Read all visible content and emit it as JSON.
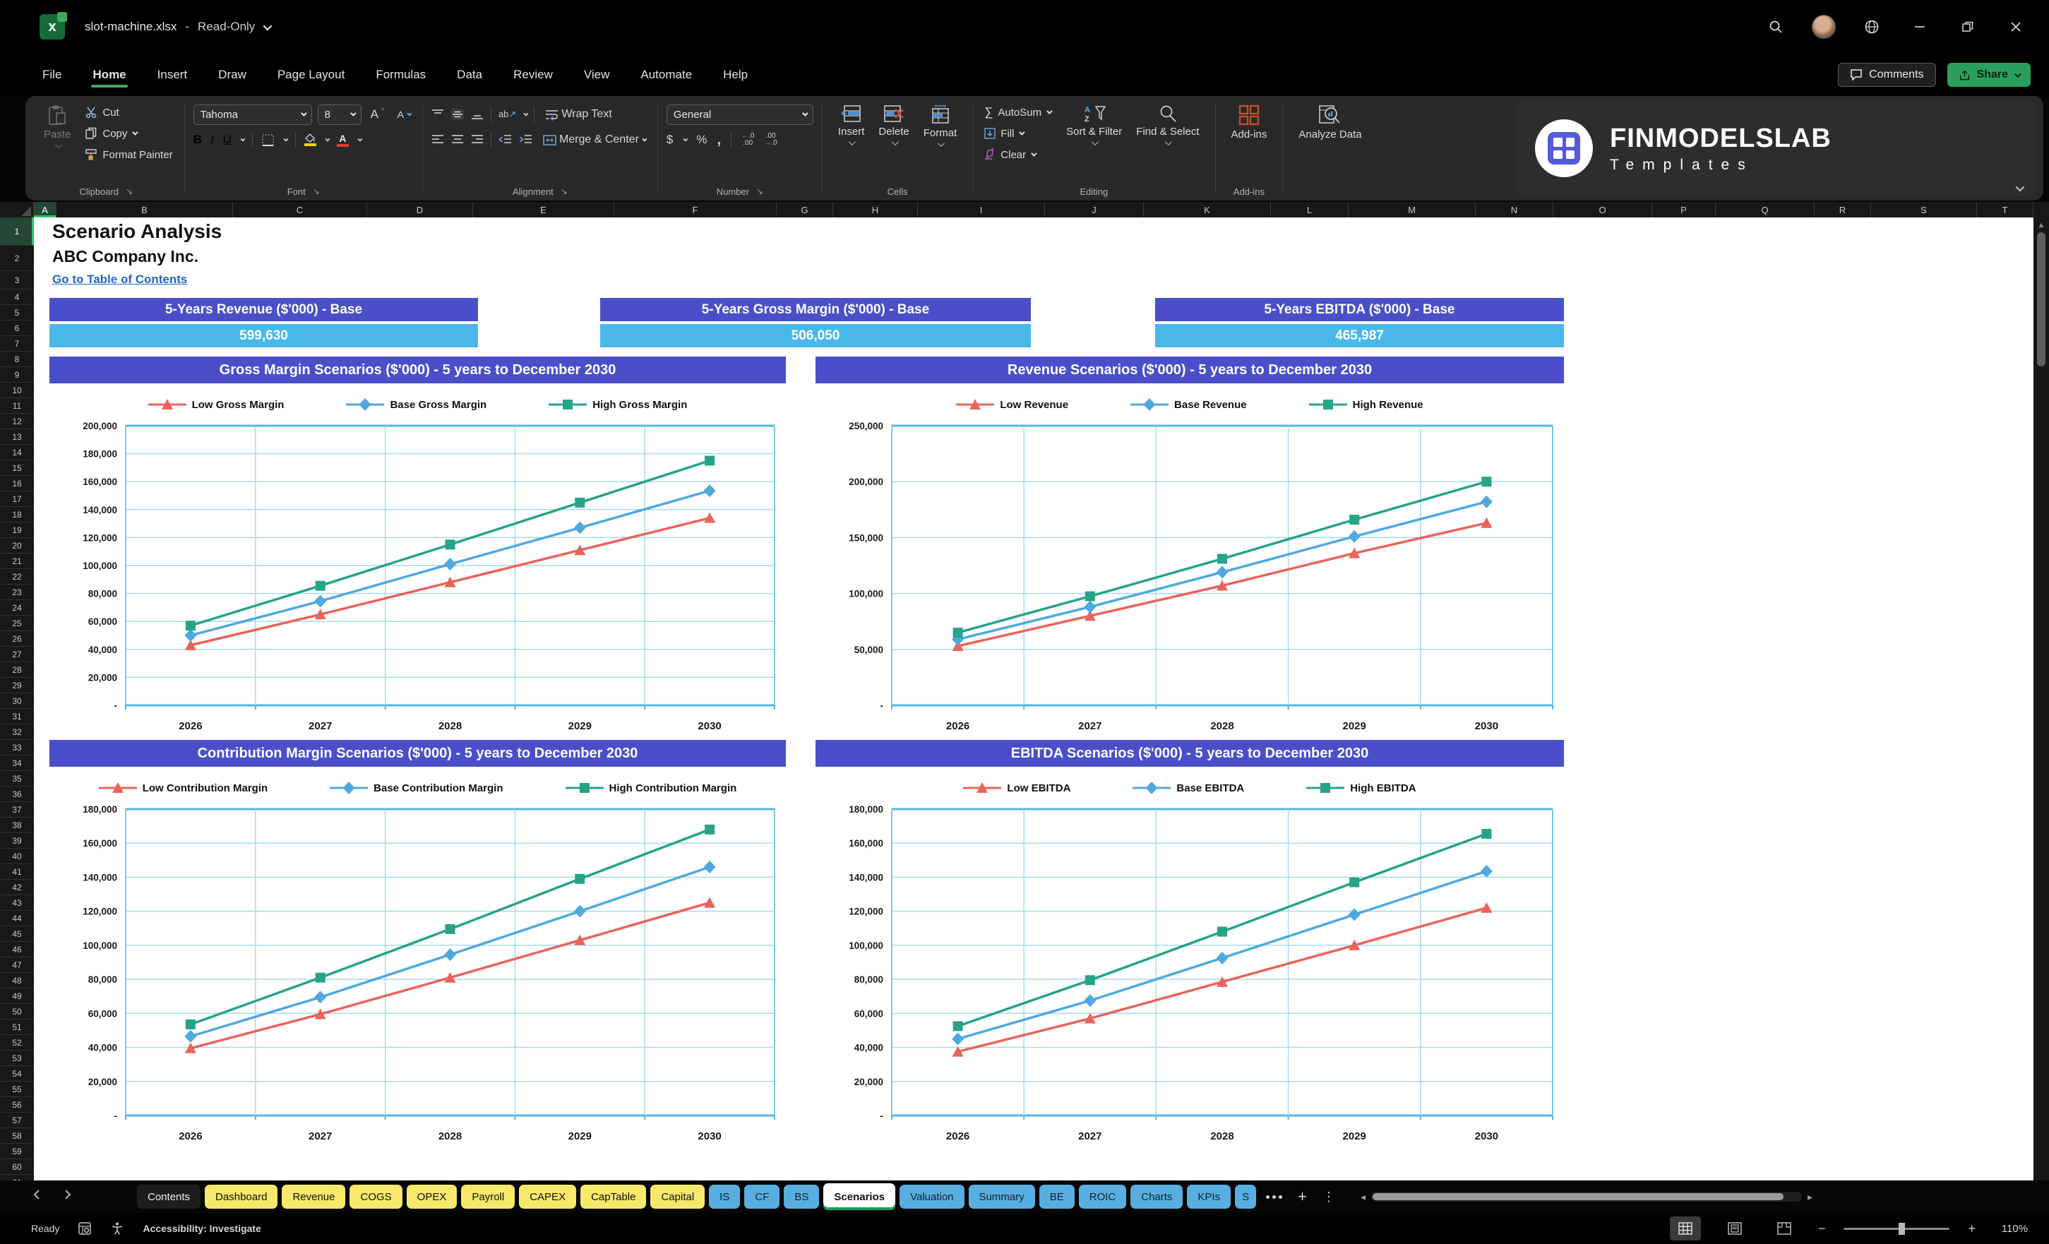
{
  "titlebar": {
    "document_title": "slot-machine.xlsx",
    "separator": "-",
    "mode": "Read-Only"
  },
  "menubar": {
    "items": [
      "File",
      "Home",
      "Insert",
      "Draw",
      "Page Layout",
      "Formulas",
      "Data",
      "Review",
      "View",
      "Automate",
      "Help"
    ],
    "active": "Home",
    "comments_label": "Comments",
    "share_label": "Share"
  },
  "ribbon": {
    "clipboard": {
      "group": "Clipboard",
      "paste": "Paste",
      "cut": "Cut",
      "copy": "Copy",
      "format_painter": "Format Painter"
    },
    "font": {
      "group": "Font",
      "font_name": "Tahoma",
      "font_size": "8"
    },
    "alignment": {
      "group": "Alignment",
      "wrap_text": "Wrap Text",
      "merge_center": "Merge & Center"
    },
    "number": {
      "group": "Number",
      "format": "General"
    },
    "cells": {
      "group": "Cells",
      "insert": "Insert",
      "delete": "Delete",
      "format": "Format"
    },
    "editing": {
      "group": "Editing",
      "autosum": "AutoSum",
      "fill": "Fill",
      "clear": "Clear",
      "sort_filter": "Sort & Filter",
      "find_select": "Find & Select"
    },
    "addins": {
      "group": "Add-ins",
      "addins": "Add-ins",
      "analyze_data": "Analyze Data"
    },
    "logo": {
      "line1": "FINMODELSLAB",
      "line2": "Templates"
    }
  },
  "grid": {
    "columns": [
      "A",
      "B",
      "C",
      "D",
      "E",
      "F",
      "G",
      "H",
      "I",
      "J",
      "K",
      "L",
      "M",
      "N",
      "O",
      "P",
      "Q",
      "R",
      "S",
      "T"
    ],
    "rows_first": 1,
    "rows_last": 61,
    "selected_column": "A",
    "selected_row": 1
  },
  "sheet": {
    "title": "Scenario Analysis",
    "company": "ABC Company Inc.",
    "link_text": "Go to Table of Contents",
    "kpis": [
      {
        "label": "5-Years Revenue ($'000) - Base",
        "value": "599,630"
      },
      {
        "label": "5-Years Gross Margin ($'000) - Base",
        "value": "506,050"
      },
      {
        "label": "5-Years EBITDA ($'000) - Base",
        "value": "465,987"
      }
    ]
  },
  "colors": {
    "low": "#E8645C",
    "base": "#4FA9DF",
    "high": "#27A389",
    "header_purple": "#4A4FC9",
    "value_blue": "#49B8E8",
    "grid_line": "#A9D9EC",
    "grid_border": "#53B7DF",
    "tab_yellow": "#F6E96B",
    "tab_blue": "#58AEE0",
    "accent_green": "#1E9E5E"
  },
  "chart_data": [
    {
      "type": "line",
      "title": "Gross Margin Scenarios ($'000) - 5 years to December 2030",
      "categories": [
        "2026",
        "2027",
        "2028",
        "2029",
        "2030"
      ],
      "ylim": [
        0,
        200000
      ],
      "ystep": 20000,
      "grid": true,
      "legend_position": "top",
      "series": [
        {
          "name": "Low Gross Margin",
          "color_key": "low",
          "marker": "triangle",
          "values": [
            43000,
            65000,
            88000,
            111000,
            134000
          ]
        },
        {
          "name": "Base Gross Margin",
          "color_key": "base",
          "marker": "diamond",
          "values": [
            50000,
            74500,
            101000,
            127000,
            153500
          ]
        },
        {
          "name": "High Gross Margin",
          "color_key": "high",
          "marker": "square",
          "values": [
            57000,
            85500,
            115000,
            145000,
            175000
          ]
        }
      ]
    },
    {
      "type": "line",
      "title": "Revenue Scenarios ($'000) - 5 years to December 2030",
      "categories": [
        "2026",
        "2027",
        "2028",
        "2029",
        "2030"
      ],
      "ylim": [
        0,
        250000
      ],
      "ystep": 50000,
      "grid": true,
      "legend_position": "top",
      "series": [
        {
          "name": "Low Revenue",
          "color_key": "low",
          "marker": "triangle",
          "values": [
            53000,
            80000,
            107000,
            136000,
            163000
          ]
        },
        {
          "name": "Base Revenue",
          "color_key": "base",
          "marker": "diamond",
          "values": [
            59000,
            88000,
            119000,
            151000,
            182000
          ]
        },
        {
          "name": "High Revenue",
          "color_key": "high",
          "marker": "square",
          "values": [
            65000,
            97500,
            131000,
            166000,
            200000
          ]
        }
      ]
    },
    {
      "type": "line",
      "title": "Contribution Margin Scenarios ($'000) - 5 years to December 2030",
      "categories": [
        "2026",
        "2027",
        "2028",
        "2029",
        "2030"
      ],
      "ylim": [
        0,
        180000
      ],
      "ystep": 20000,
      "grid": true,
      "legend_position": "top",
      "series": [
        {
          "name": "Low Contribution Margin",
          "color_key": "low",
          "marker": "triangle",
          "values": [
            39500,
            59500,
            81000,
            103000,
            125000
          ]
        },
        {
          "name": "Base Contribution Margin",
          "color_key": "base",
          "marker": "diamond",
          "values": [
            46500,
            69500,
            94500,
            120000,
            146000
          ]
        },
        {
          "name": "High Contribution Margin",
          "color_key": "high",
          "marker": "square",
          "values": [
            53500,
            81000,
            109500,
            139000,
            168000
          ]
        }
      ]
    },
    {
      "type": "line",
      "title": "EBITDA Scenarios ($'000) - 5 years to December 2030",
      "categories": [
        "2026",
        "2027",
        "2028",
        "2029",
        "2030"
      ],
      "ylim": [
        0,
        180000
      ],
      "ystep": 20000,
      "grid": true,
      "legend_position": "top",
      "series": [
        {
          "name": "Low EBITDA",
          "color_key": "low",
          "marker": "triangle",
          "values": [
            37500,
            57000,
            78500,
            100000,
            122000
          ]
        },
        {
          "name": "Base EBITDA",
          "color_key": "base",
          "marker": "diamond",
          "values": [
            45000,
            67500,
            92500,
            118000,
            143500
          ]
        },
        {
          "name": "High EBITDA",
          "color_key": "high",
          "marker": "square",
          "values": [
            52500,
            79500,
            108000,
            137000,
            165500
          ]
        }
      ]
    }
  ],
  "sheet_tabs": {
    "tabs": [
      {
        "label": "Contents",
        "style": "dark"
      },
      {
        "label": "Dashboard",
        "style": "yellow"
      },
      {
        "label": "Revenue",
        "style": "yellow"
      },
      {
        "label": "COGS",
        "style": "yellow"
      },
      {
        "label": "OPEX",
        "style": "yellow"
      },
      {
        "label": "Payroll",
        "style": "yellow"
      },
      {
        "label": "CAPEX",
        "style": "yellow"
      },
      {
        "label": "CapTable",
        "style": "yellow"
      },
      {
        "label": "Capital",
        "style": "yellow"
      },
      {
        "label": "IS",
        "style": "blue"
      },
      {
        "label": "CF",
        "style": "blue"
      },
      {
        "label": "BS",
        "style": "blue"
      },
      {
        "label": "Scenarios",
        "style": "active"
      },
      {
        "label": "Valuation",
        "style": "blue"
      },
      {
        "label": "Summary",
        "style": "blue"
      },
      {
        "label": "BE",
        "style": "blue"
      },
      {
        "label": "ROIC",
        "style": "blue"
      },
      {
        "label": "Charts",
        "style": "blue"
      },
      {
        "label": "KPIs",
        "style": "blue"
      },
      {
        "label": "S",
        "style": "blue clip"
      }
    ],
    "active": "Scenarios"
  },
  "statusbar": {
    "ready": "Ready",
    "accessibility": "Accessibility: Investigate",
    "zoom": "110%"
  },
  "icons": [
    "excel-app-icon",
    "search-icon",
    "avatar",
    "globe-icon",
    "minimize-icon",
    "restore-icon",
    "close-icon",
    "comment-icon",
    "share-icon",
    "paste-icon",
    "scissors-icon",
    "copy-icon",
    "format-painter-icon",
    "bold-icon",
    "italic-icon",
    "underline-icon",
    "borders-icon",
    "fill-color-icon",
    "font-color-icon",
    "align-icons",
    "orientation-icon",
    "wrap-text-icon",
    "merge-center-icon",
    "currency-icon",
    "percent-icon",
    "comma-icon",
    "decimal-icons",
    "insert-cells-icon",
    "delete-cells-icon",
    "format-cells-icon",
    "autosum-icon",
    "fill-down-icon",
    "clear-icon",
    "sort-filter-icon",
    "find-select-icon",
    "addins-icon",
    "analyze-data-icon",
    "finmodelslab-logo",
    "select-all-corner",
    "macro-icon",
    "accessibility-icon",
    "normal-view-icon",
    "page-layout-view-icon",
    "page-break-view-icon",
    "zoom-slider"
  ]
}
